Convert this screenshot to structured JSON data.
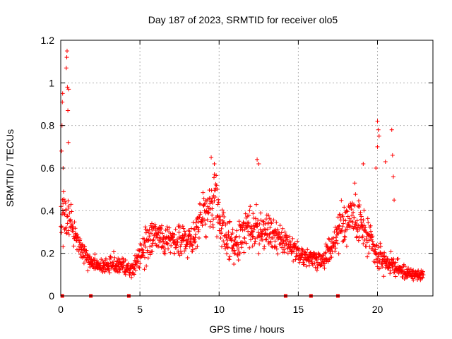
{
  "chart_data": {
    "type": "scatter",
    "title": "Day 187 of 2023, SRMTID for receiver olo5",
    "xlabel": "GPS time / hours",
    "ylabel": "SRMTID / TECUs",
    "xlim": [
      0,
      23.5
    ],
    "ylim": [
      0,
      1.2
    ],
    "x_ticks": [
      0,
      5,
      10,
      15,
      20
    ],
    "x_tick_labels": [
      "0",
      "5",
      "10",
      "15",
      "20"
    ],
    "y_ticks": [
      0,
      0.2,
      0.4,
      0.6,
      0.8,
      1.0,
      1.2
    ],
    "y_tick_labels": [
      "0",
      "0.2",
      "0.4",
      "0.6",
      "0.8",
      "1",
      "1.2"
    ],
    "grid": true,
    "marker": "plus",
    "series": [
      {
        "name": "SRMTID",
        "color": "#ff0000",
        "profile": {
          "x": [
            0,
            0.2,
            0.4,
            0.8,
            1.2,
            1.8,
            2.5,
            3.5,
            4.5,
            5.0,
            5.5,
            6.0,
            7.0,
            8.0,
            8.5,
            9.0,
            9.5,
            9.8,
            10.0,
            10.5,
            11.0,
            11.5,
            12.0,
            12.5,
            13.0,
            13.5,
            14.0,
            14.5,
            15.0,
            15.5,
            16.0,
            16.5,
            17.0,
            17.5,
            18.0,
            18.5,
            19.0,
            19.5,
            20.0,
            20.5,
            21.0,
            21.5,
            22.0,
            22.5,
            22.9
          ],
          "y": [
            0.35,
            0.42,
            0.4,
            0.32,
            0.24,
            0.16,
            0.14,
            0.15,
            0.12,
            0.2,
            0.25,
            0.28,
            0.27,
            0.26,
            0.3,
            0.36,
            0.42,
            0.45,
            0.34,
            0.28,
            0.22,
            0.3,
            0.34,
            0.3,
            0.3,
            0.28,
            0.26,
            0.22,
            0.2,
            0.18,
            0.18,
            0.17,
            0.22,
            0.3,
            0.36,
            0.4,
            0.32,
            0.26,
            0.18,
            0.16,
            0.14,
            0.12,
            0.1,
            0.1,
            0.1
          ],
          "spread": [
            0.12,
            0.2,
            0.14,
            0.09,
            0.06,
            0.05,
            0.04,
            0.05,
            0.04,
            0.08,
            0.1,
            0.1,
            0.09,
            0.09,
            0.12,
            0.13,
            0.15,
            0.17,
            0.14,
            0.1,
            0.1,
            0.12,
            0.12,
            0.12,
            0.12,
            0.1,
            0.08,
            0.06,
            0.06,
            0.05,
            0.05,
            0.05,
            0.08,
            0.12,
            0.14,
            0.14,
            0.12,
            0.1,
            0.08,
            0.06,
            0.05,
            0.04,
            0.04,
            0.03,
            0.03
          ]
        },
        "outliers": [
          {
            "x": 0.05,
            "y": 0.68
          },
          {
            "x": 0.08,
            "y": 0.8
          },
          {
            "x": 0.1,
            "y": 0.91
          },
          {
            "x": 0.12,
            "y": 0.95
          },
          {
            "x": 0.15,
            "y": 0.6
          },
          {
            "x": 0.35,
            "y": 1.07
          },
          {
            "x": 0.38,
            "y": 1.12
          },
          {
            "x": 0.4,
            "y": 1.15
          },
          {
            "x": 0.42,
            "y": 0.98
          },
          {
            "x": 0.45,
            "y": 0.87
          },
          {
            "x": 0.48,
            "y": 0.72
          },
          {
            "x": 0.5,
            "y": 0.97
          },
          {
            "x": 9.5,
            "y": 0.65
          },
          {
            "x": 9.7,
            "y": 0.62
          },
          {
            "x": 12.4,
            "y": 0.64
          },
          {
            "x": 12.5,
            "y": 0.62
          },
          {
            "x": 19.1,
            "y": 0.62
          },
          {
            "x": 20.0,
            "y": 0.82
          },
          {
            "x": 20.05,
            "y": 0.78
          },
          {
            "x": 20.1,
            "y": 0.75
          },
          {
            "x": 20.0,
            "y": 0.7
          },
          {
            "x": 19.9,
            "y": 0.6
          },
          {
            "x": 20.5,
            "y": 0.63
          },
          {
            "x": 20.9,
            "y": 0.78
          },
          {
            "x": 20.95,
            "y": 0.66
          },
          {
            "x": 21.0,
            "y": 0.56
          },
          {
            "x": 21.05,
            "y": 0.45
          }
        ],
        "zeros_x": [
          0.1,
          1.9,
          4.3,
          14.2,
          15.8,
          17.5
        ]
      }
    ]
  }
}
